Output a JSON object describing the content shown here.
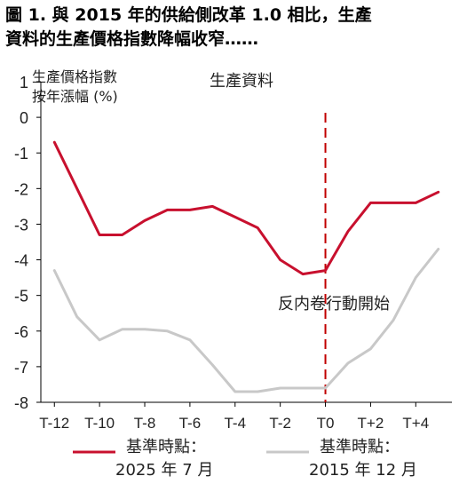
{
  "title": {
    "line1": "圖 1. 與 2015 年的供給側改革 1.0 相比，生產",
    "line2": "資料的生產價格指數降幅收窄……"
  },
  "chart_data": {
    "type": "line",
    "panel_title": "生產資料",
    "ylabel_line1": "生產價格指數",
    "ylabel_line2": "按年漲幅 (%)",
    "ylim": [
      -8,
      1
    ],
    "yticks": [
      1,
      0,
      -1,
      -2,
      -3,
      -4,
      -5,
      -6,
      -7,
      -8
    ],
    "x": [
      -12,
      -11,
      -10,
      -9,
      -8,
      -7,
      -6,
      -5,
      -4,
      -3,
      -2,
      -1,
      0,
      1,
      2,
      3,
      4,
      5
    ],
    "xlim": [
      -12.6,
      5.6
    ],
    "xticks": [
      {
        "value": -12,
        "label": "T-12"
      },
      {
        "value": -10,
        "label": "T-10"
      },
      {
        "value": -8,
        "label": "T-8"
      },
      {
        "value": -6,
        "label": "T-6"
      },
      {
        "value": -4,
        "label": "T-4"
      },
      {
        "value": -2,
        "label": "T-2"
      },
      {
        "value": 0,
        "label": "T0"
      },
      {
        "value": 2,
        "label": "T+2"
      },
      {
        "value": 4,
        "label": "T+4"
      }
    ],
    "annotation": {
      "x": 0,
      "label": "反内卷行動開始",
      "color": "#c00000"
    },
    "grid": false,
    "legend_position": "bottom",
    "series": [
      {
        "name_line1": "基準時點：",
        "name_line2": "2025 年 7 月",
        "color": "#c8102e",
        "values": [
          -0.7,
          -2.0,
          -3.3,
          -3.3,
          -2.9,
          -2.6,
          -2.6,
          -2.5,
          -2.8,
          -3.1,
          -4.0,
          -4.4,
          -4.3,
          -3.2,
          -2.4,
          -2.4,
          -2.4,
          -2.1
        ]
      },
      {
        "name_line1": "基準時點：",
        "name_line2": "2015 年 12 月",
        "color": "#c8c8c8",
        "values": [
          -4.3,
          -5.6,
          -6.25,
          -5.95,
          -5.95,
          -6.0,
          -6.25,
          -6.95,
          -7.7,
          -7.7,
          -7.6,
          -7.6,
          -7.6,
          -6.9,
          -6.5,
          -5.7,
          -4.5,
          -3.7
        ]
      }
    ]
  }
}
